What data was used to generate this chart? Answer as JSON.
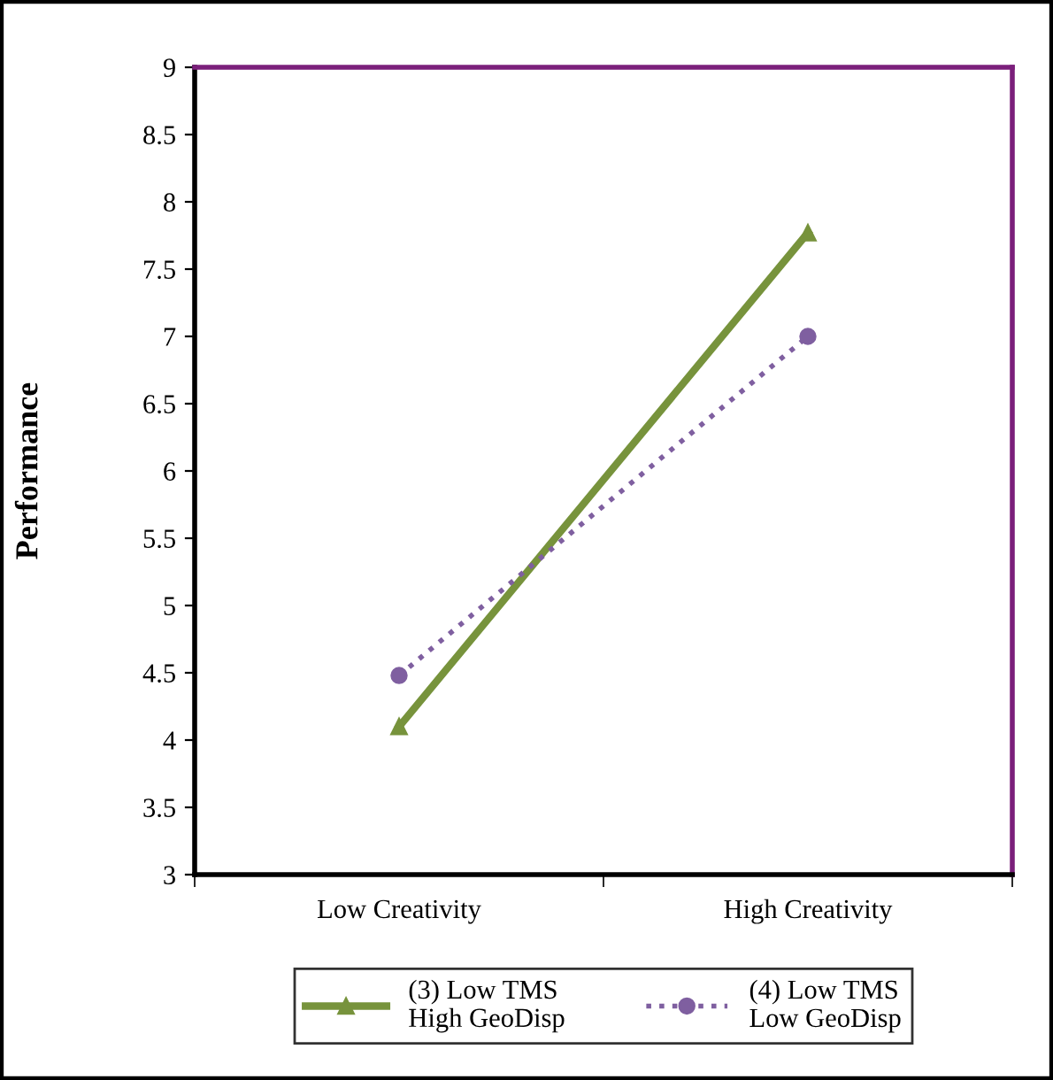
{
  "chart_data": {
    "type": "line",
    "ylabel": "Performance",
    "categories": [
      "Low Creativity",
      "High Creativity"
    ],
    "series": [
      {
        "name": "(3) Low TMS\nHigh GeoDisp",
        "color": "#77933c",
        "values": [
          4.1,
          7.77
        ],
        "marker": "triangle",
        "line_style": "solid"
      },
      {
        "name": "(4) Low TMS\nLow GeoDisp",
        "color": "#7f5fa0",
        "values": [
          4.48,
          7.0
        ],
        "marker": "circle",
        "line_style": "dotted"
      }
    ],
    "ylim": [
      3,
      9
    ],
    "yticks": [
      3,
      3.5,
      4,
      4.5,
      5,
      5.5,
      6,
      6.5,
      7,
      7.5,
      8,
      8.5,
      9
    ],
    "grid": false,
    "legend": "bottom"
  }
}
